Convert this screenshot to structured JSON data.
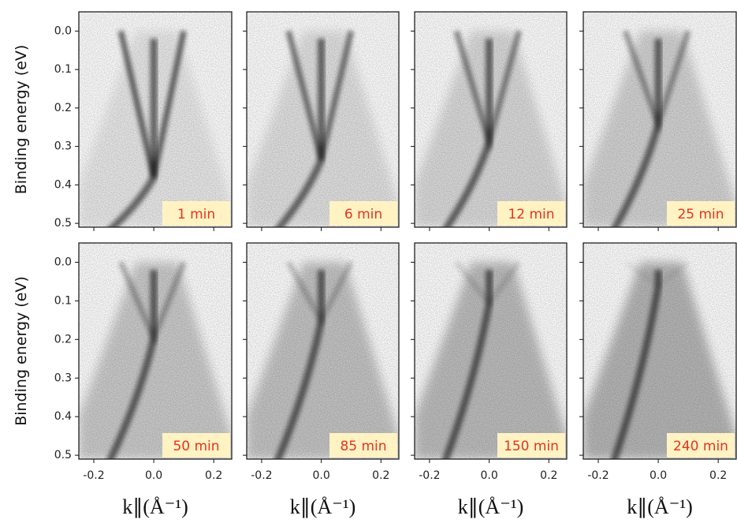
{
  "chart_data": [
    {
      "type": "heatmap",
      "annotation": "1 min",
      "ylabel": "Binding energy (eV)",
      "xlim": [
        -0.25,
        0.26
      ],
      "xticks": [
        -0.2,
        0,
        0.2
      ],
      "ylim": [
        -0.05,
        0.51
      ],
      "yticks": [
        {
          "value": 0,
          "label": "0.0"
        },
        0.1,
        0.2,
        0.3,
        0.4,
        0.5
      ]
    },
    {
      "type": "heatmap",
      "annotation": "6 min",
      "xlim": [
        -0.25,
        0.26
      ],
      "xticks": [
        -0.2,
        0,
        0.2
      ],
      "ylim": [
        -0.05,
        0.51
      ],
      "yticks": [
        0,
        0.1,
        0.2,
        0.3,
        0.4,
        0.5
      ]
    },
    {
      "type": "heatmap",
      "annotation": "12 min",
      "xlim": [
        -0.25,
        0.26
      ],
      "xticks": [
        -0.2,
        0,
        0.2
      ],
      "ylim": [
        -0.05,
        0.51
      ],
      "yticks": [
        0,
        0.1,
        0.2,
        0.3,
        0.4,
        0.5
      ]
    },
    {
      "type": "heatmap",
      "annotation": "25 min",
      "xlim": [
        -0.25,
        0.26
      ],
      "xticks": [
        -0.2,
        0,
        0.2
      ],
      "ylim": [
        -0.05,
        0.51
      ],
      "yticks": [
        0,
        0.1,
        0.2,
        0.3,
        0.4,
        0.5
      ]
    },
    {
      "type": "heatmap",
      "annotation": "50 min",
      "ylabel": "Binding energy (eV)",
      "xlabel": "k∥(Å⁻¹)",
      "xlim": [
        -0.25,
        0.26
      ],
      "xticks": [
        -0.2,
        {
          "value": 0,
          "label": "0.0"
        },
        0.2
      ],
      "ylim": [
        -0.05,
        0.51
      ],
      "yticks": [
        {
          "value": 0,
          "label": "0.0"
        },
        0.1,
        0.2,
        0.3,
        0.4,
        0.5
      ]
    },
    {
      "type": "heatmap",
      "annotation": "85 min",
      "xlabel": "k∥(Å⁻¹)",
      "xlim": [
        -0.25,
        0.26
      ],
      "xticks": [
        -0.2,
        {
          "value": 0,
          "label": "0.0"
        },
        0.2
      ],
      "ylim": [
        -0.05,
        0.51
      ],
      "yticks": [
        0,
        0.1,
        0.2,
        0.3,
        0.4,
        0.5
      ]
    },
    {
      "type": "heatmap",
      "annotation": "150 min",
      "xlabel": "k∥(Å⁻¹)",
      "xlim": [
        -0.25,
        0.26
      ],
      "xticks": [
        -0.2,
        {
          "value": 0,
          "label": "0.0"
        },
        0.2
      ],
      "ylim": [
        -0.05,
        0.51
      ],
      "yticks": [
        0,
        0.1,
        0.2,
        0.3,
        0.4,
        0.5
      ]
    },
    {
      "type": "heatmap",
      "annotation": "240 min",
      "xlabel": "k∥(Å⁻¹)",
      "xlim": [
        -0.25,
        0.26
      ],
      "xticks": [
        -0.2,
        {
          "value": 0,
          "label": "0.0"
        },
        0.2
      ],
      "ylim": [
        -0.05,
        0.51
      ],
      "yticks": [
        0,
        0.1,
        0.2,
        0.3,
        0.4,
        0.5
      ]
    }
  ]
}
